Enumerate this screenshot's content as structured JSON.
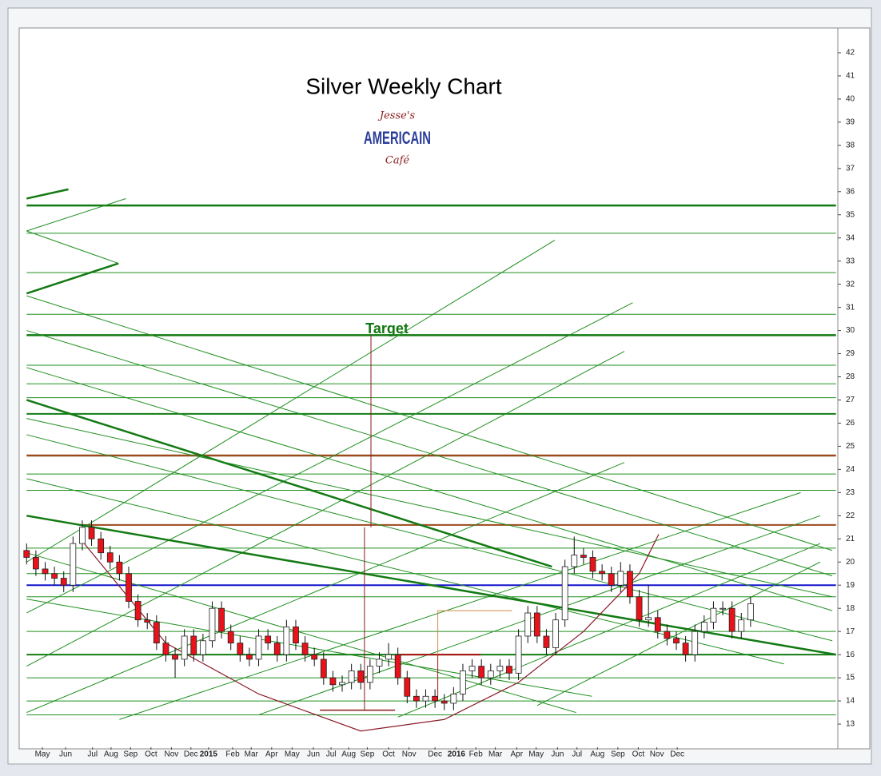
{
  "chart_data": {
    "type": "candlestick",
    "title": "Silver Weekly Chart",
    "logo": [
      "Jesse's",
      "AMERICAIN",
      "Café"
    ],
    "annotation": "Target",
    "xlim": [
      -0.8,
      87.4
    ],
    "ylim": [
      12,
      43
    ],
    "yticks": [
      13,
      14,
      15,
      16,
      17,
      18,
      19,
      20,
      21,
      22,
      23,
      24,
      25,
      26,
      27,
      28,
      29,
      30,
      31,
      32,
      33,
      34,
      35,
      36,
      37,
      38,
      39,
      40,
      41,
      42
    ],
    "xticks": [
      {
        "value": 1.7,
        "label": "May"
      },
      {
        "value": 4.2,
        "label": "Jun"
      },
      {
        "value": 7.1,
        "label": "Jul"
      },
      {
        "value": 9.1,
        "label": "Aug"
      },
      {
        "value": 11.2,
        "label": "Sep"
      },
      {
        "value": 13.4,
        "label": "Oct"
      },
      {
        "value": 15.6,
        "label": "Nov"
      },
      {
        "value": 17.7,
        "label": "Dec"
      },
      {
        "value": 19.6,
        "label": "2015"
      },
      {
        "value": 22.2,
        "label": "Feb"
      },
      {
        "value": 24.2,
        "label": "Mar"
      },
      {
        "value": 26.4,
        "label": "Apr"
      },
      {
        "value": 28.6,
        "label": "May"
      },
      {
        "value": 30.9,
        "label": "Jun"
      },
      {
        "value": 32.8,
        "label": "Jul"
      },
      {
        "value": 34.7,
        "label": "Aug"
      },
      {
        "value": 36.7,
        "label": "Sep"
      },
      {
        "value": 39.0,
        "label": "Oct"
      },
      {
        "value": 41.2,
        "label": "Nov"
      },
      {
        "value": 44.0,
        "label": "Dec"
      },
      {
        "value": 46.3,
        "label": "2016"
      },
      {
        "value": 48.4,
        "label": "Feb"
      },
      {
        "value": 50.5,
        "label": "Mar"
      },
      {
        "value": 52.8,
        "label": "Apr"
      },
      {
        "value": 54.9,
        "label": "May"
      },
      {
        "value": 57.2,
        "label": "Jun"
      },
      {
        "value": 59.3,
        "label": "Jul"
      },
      {
        "value": 61.5,
        "label": "Aug"
      },
      {
        "value": 63.7,
        "label": "Sep"
      },
      {
        "value": 65.9,
        "label": "Oct"
      },
      {
        "value": 67.9,
        "label": "Nov"
      },
      {
        "value": 70.1,
        "label": "Dec"
      }
    ],
    "up_color": "#ffffff",
    "down_color": "#e8121b",
    "open": [
      20.5,
      20.2,
      19.7,
      19.5,
      19.3,
      19.0,
      20.8,
      21.5,
      21.0,
      20.4,
      20.0,
      19.5,
      18.3,
      17.5,
      17.4,
      16.5,
      16.0,
      15.8,
      16.8,
      16.0,
      16.6,
      18.0,
      17.0,
      16.5,
      16.0,
      15.8,
      16.8,
      16.5,
      16.0,
      17.2,
      16.5,
      16.0,
      15.8,
      15.0,
      14.7,
      14.8,
      15.3,
      14.8,
      15.5,
      15.8,
      16.0,
      15.0,
      14.2,
      14.0,
      14.2,
      14.0,
      13.9,
      14.3,
      15.3,
      15.5,
      15.0,
      15.3,
      15.5,
      15.2,
      16.8,
      17.8,
      16.8,
      16.3,
      17.5,
      19.8,
      20.3,
      20.2,
      19.6,
      19.5,
      19.0,
      19.6,
      18.5,
      17.5,
      17.6,
      17.0,
      16.7,
      16.5,
      16.0,
      17.0,
      17.4,
      18.0,
      18.0,
      17.0,
      17.5
    ],
    "high": [
      20.8,
      20.5,
      20.0,
      19.8,
      19.6,
      21.1,
      21.8,
      21.8,
      21.3,
      20.7,
      20.3,
      19.8,
      18.6,
      17.8,
      17.7,
      16.8,
      16.3,
      17.1,
      17.1,
      16.9,
      18.3,
      18.3,
      17.3,
      16.8,
      16.3,
      17.1,
      17.1,
      16.8,
      17.5,
      17.5,
      16.8,
      16.3,
      16.1,
      15.3,
      15.1,
      15.6,
      15.6,
      15.8,
      16.1,
      16.5,
      16.3,
      15.3,
      14.5,
      14.5,
      14.5,
      14.3,
      14.6,
      15.6,
      15.8,
      15.8,
      15.6,
      15.8,
      15.8,
      17.1,
      18.1,
      18.1,
      17.1,
      17.8,
      20.1,
      21.1,
      20.6,
      20.5,
      19.9,
      19.8,
      20.0,
      19.9,
      18.8,
      19.0,
      17.9,
      17.3,
      17.0,
      16.8,
      17.3,
      17.7,
      18.3,
      18.3,
      18.3,
      17.8,
      18.5
    ],
    "low": [
      19.9,
      19.4,
      19.2,
      19.0,
      18.7,
      18.7,
      20.5,
      20.7,
      20.1,
      19.7,
      19.2,
      18.0,
      17.2,
      17.1,
      16.2,
      15.7,
      15.0,
      15.5,
      15.7,
      15.7,
      16.3,
      16.7,
      16.2,
      15.7,
      15.5,
      15.5,
      16.2,
      15.7,
      15.7,
      16.2,
      15.7,
      15.5,
      14.7,
      14.4,
      14.4,
      14.5,
      14.5,
      14.5,
      15.2,
      15.5,
      14.7,
      13.9,
      13.7,
      13.7,
      13.7,
      13.6,
      13.6,
      14.0,
      15.0,
      14.7,
      14.7,
      15.0,
      14.9,
      14.9,
      16.5,
      16.5,
      16.0,
      16.0,
      17.2,
      19.5,
      19.9,
      19.3,
      19.2,
      18.7,
      18.7,
      18.2,
      17.2,
      17.2,
      16.7,
      16.4,
      16.2,
      15.7,
      15.7,
      16.7,
      17.1,
      17.7,
      16.7,
      16.7,
      17.2
    ],
    "close": [
      20.2,
      19.7,
      19.5,
      19.3,
      19.0,
      20.8,
      21.5,
      21.0,
      20.4,
      20.0,
      19.5,
      18.3,
      17.5,
      17.4,
      16.5,
      16.0,
      15.8,
      16.8,
      16.0,
      16.6,
      18.0,
      17.0,
      16.5,
      16.0,
      15.8,
      16.8,
      16.5,
      16.0,
      17.2,
      16.5,
      16.0,
      15.8,
      15.0,
      14.7,
      14.8,
      15.3,
      14.8,
      15.5,
      15.8,
      16.0,
      15.0,
      14.2,
      14.0,
      14.2,
      14.0,
      13.9,
      14.3,
      15.3,
      15.5,
      15.0,
      15.3,
      15.5,
      15.2,
      16.8,
      17.8,
      16.8,
      16.3,
      17.5,
      19.8,
      20.3,
      20.2,
      19.6,
      19.5,
      19.0,
      19.6,
      18.5,
      17.5,
      17.6,
      17.0,
      16.7,
      16.5,
      16.0,
      17.0,
      17.4,
      18.0,
      18.0,
      17.0,
      17.5,
      18.2
    ],
    "lines": [
      {
        "x": [
          0,
          87.2
        ],
        "y": [
          35.4,
          35.4
        ],
        "color": "#137a13",
        "width": 2.5
      },
      {
        "x": [
          0,
          87.2
        ],
        "y": [
          34.2,
          34.2
        ],
        "color": "#1f8f1f",
        "width": 1
      },
      {
        "x": [
          0,
          87.2
        ],
        "y": [
          32.5,
          32.5
        ],
        "color": "#1f8f1f",
        "width": 1
      },
      {
        "x": [
          0,
          87.2
        ],
        "y": [
          30.7,
          30.7
        ],
        "color": "#1f8f1f",
        "width": 1
      },
      {
        "x": [
          0,
          87.2
        ],
        "y": [
          29.8,
          29.8
        ],
        "color": "#137a13",
        "width": 2.5
      },
      {
        "x": [
          0,
          87.2
        ],
        "y": [
          28.5,
          28.5
        ],
        "color": "#1f8f1f",
        "width": 1
      },
      {
        "x": [
          0,
          87.2
        ],
        "y": [
          27.7,
          27.7
        ],
        "color": "#1f8f1f",
        "width": 1
      },
      {
        "x": [
          0,
          87.2
        ],
        "y": [
          27.1,
          27.1
        ],
        "color": "#1f8f1f",
        "width": 1
      },
      {
        "x": [
          0,
          87.2
        ],
        "y": [
          26.4,
          26.4
        ],
        "color": "#137a13",
        "width": 2
      },
      {
        "x": [
          0,
          87.2
        ],
        "y": [
          24.6,
          24.6
        ],
        "color": "#9b4a1c",
        "width": 2.5
      },
      {
        "x": [
          0,
          87.2
        ],
        "y": [
          23.8,
          23.8
        ],
        "color": "#1f8f1f",
        "width": 1
      },
      {
        "x": [
          0,
          87.2
        ],
        "y": [
          23.1,
          23.1
        ],
        "color": "#1f8f1f",
        "width": 1
      },
      {
        "x": [
          6,
          87.2
        ],
        "y": [
          21.6,
          21.6
        ],
        "color": "#9b4a1c",
        "width": 2
      },
      {
        "x": [
          0,
          87.2
        ],
        "y": [
          20.6,
          20.6
        ],
        "color": "#1f8f1f",
        "width": 1
      },
      {
        "x": [
          0,
          87.2
        ],
        "y": [
          19.5,
          19.5
        ],
        "color": "#1f8f1f",
        "width": 1
      },
      {
        "x": [
          0,
          87.2
        ],
        "y": [
          19.0,
          19.0
        ],
        "color": "#1212cc",
        "width": 2
      },
      {
        "x": [
          0,
          87.2
        ],
        "y": [
          18.5,
          18.5
        ],
        "color": "#1f8f1f",
        "width": 1
      },
      {
        "x": [
          0,
          87.2
        ],
        "y": [
          17.0,
          17.0
        ],
        "color": "#1f8f1f",
        "width": 1
      },
      {
        "x": [
          0,
          87.2
        ],
        "y": [
          16.0,
          16.0
        ],
        "color": "#137a13",
        "width": 2
      },
      {
        "x": [
          0,
          87.2
        ],
        "y": [
          15.0,
          15.0
        ],
        "color": "#1f8f1f",
        "width": 1
      },
      {
        "x": [
          0,
          87.2
        ],
        "y": [
          14.0,
          14.0
        ],
        "color": "#1f8f1f",
        "width": 1
      },
      {
        "x": [
          0,
          87.2
        ],
        "y": [
          13.4,
          13.4
        ],
        "color": "#1f8f1f",
        "width": 1
      },
      {
        "x": [
          0,
          56.9
        ],
        "y": [
          20.0,
          33.9
        ],
        "color": "#1f8f1f",
        "width": 1
      },
      {
        "x": [
          0,
          65.3
        ],
        "y": [
          17.8,
          31.2
        ],
        "color": "#1f8f1f",
        "width": 1
      },
      {
        "x": [
          0,
          64.4
        ],
        "y": [
          15.5,
          29.1
        ],
        "color": "#1f8f1f",
        "width": 1
      },
      {
        "x": [
          0,
          64.4
        ],
        "y": [
          13.5,
          24.3
        ],
        "color": "#1f8f1f",
        "width": 1
      },
      {
        "x": [
          10,
          83.4
        ],
        "y": [
          13.2,
          23.0
        ],
        "color": "#1f8f1f",
        "width": 1
      },
      {
        "x": [
          25,
          85.5
        ],
        "y": [
          13.4,
          22.0
        ],
        "color": "#1f8f1f",
        "width": 1
      },
      {
        "x": [
          40,
          85.5
        ],
        "y": [
          13.3,
          20.8
        ],
        "color": "#1f8f1f",
        "width": 1
      },
      {
        "x": [
          55,
          85.5
        ],
        "y": [
          13.8,
          20.0
        ],
        "color": "#1f8f1f",
        "width": 1
      },
      {
        "x": [
          0,
          9.9
        ],
        "y": [
          31.6,
          32.9
        ],
        "color": "#137a13",
        "width": 2.5
      },
      {
        "x": [
          0,
          4.5
        ],
        "y": [
          35.7,
          36.1
        ],
        "color": "#137a13",
        "width": 2.5
      },
      {
        "x": [
          0,
          10.7
        ],
        "y": [
          34.3,
          35.7
        ],
        "color": "#1f8f1f",
        "width": 1
      },
      {
        "x": [
          0,
          9.9
        ],
        "y": [
          34.3,
          32.9
        ],
        "color": "#1f8f1f",
        "width": 1
      },
      {
        "x": [
          0,
          86.8
        ],
        "y": [
          31.5,
          20.5
        ],
        "color": "#1f8f1f",
        "width": 1
      },
      {
        "x": [
          0,
          86.8
        ],
        "y": [
          30.0,
          19.4
        ],
        "color": "#1f8f1f",
        "width": 1
      },
      {
        "x": [
          0,
          86.8
        ],
        "y": [
          28.4,
          17.9
        ],
        "color": "#1f8f1f",
        "width": 1
      },
      {
        "x": [
          0,
          56.6
        ],
        "y": [
          27.0,
          19.8
        ],
        "color": "#137a13",
        "width": 2.5
      },
      {
        "x": [
          0,
          86.8
        ],
        "y": [
          26.2,
          18.5
        ],
        "color": "#1f8f1f",
        "width": 1
      },
      {
        "x": [
          0,
          86.8
        ],
        "y": [
          25.5,
          16.6
        ],
        "color": "#1f8f1f",
        "width": 1
      },
      {
        "x": [
          0,
          81.6
        ],
        "y": [
          23.6,
          15.6
        ],
        "color": "#1f8f1f",
        "width": 1
      },
      {
        "x": [
          0,
          87.2
        ],
        "y": [
          22.0,
          16.0
        ],
        "color": "#137a13",
        "width": 2.5
      },
      {
        "x": [
          0,
          59.2
        ],
        "y": [
          20.4,
          13.5
        ],
        "color": "#1f8f1f",
        "width": 1
      },
      {
        "x": [
          0,
          60.9
        ],
        "y": [
          18.4,
          14.2
        ],
        "color": "#1f8f1f",
        "width": 1
      },
      {
        "x": [
          37.1,
          37.1
        ],
        "y": [
          29.8,
          21.5
        ],
        "color": "#8b1a1a",
        "width": 1
      },
      {
        "x": [
          36.4,
          36.4
        ],
        "y": [
          21.5,
          13.6
        ],
        "color": "#8b1a1a",
        "width": 1
      },
      {
        "x": [
          31.6,
          39.7
        ],
        "y": [
          13.6,
          13.6
        ],
        "color": "#8b1a1a",
        "width": 1.5
      },
      {
        "x": [
          40.3,
          48.9
        ],
        "y": [
          16.0,
          16.0
        ],
        "color": "#b01010",
        "width": 2
      },
      {
        "x": [
          44.3,
          44.3
        ],
        "y": [
          16.0,
          14.2
        ],
        "color": "#b01010",
        "width": 1
      },
      {
        "x": [
          44.3,
          44.3,
          52.3
        ],
        "y": [
          16.0,
          17.9,
          17.9
        ],
        "color": "#d4884a",
        "width": 1
      },
      {
        "x": [
          5.8,
          15,
          25,
          36,
          45,
          53,
          60,
          66,
          68.1
        ],
        "y": [
          21.0,
          16.5,
          14.3,
          12.7,
          13.2,
          14.8,
          17.0,
          19.5,
          21.2
        ],
        "color": "#8b1a2a",
        "width": 1.2
      }
    ]
  }
}
